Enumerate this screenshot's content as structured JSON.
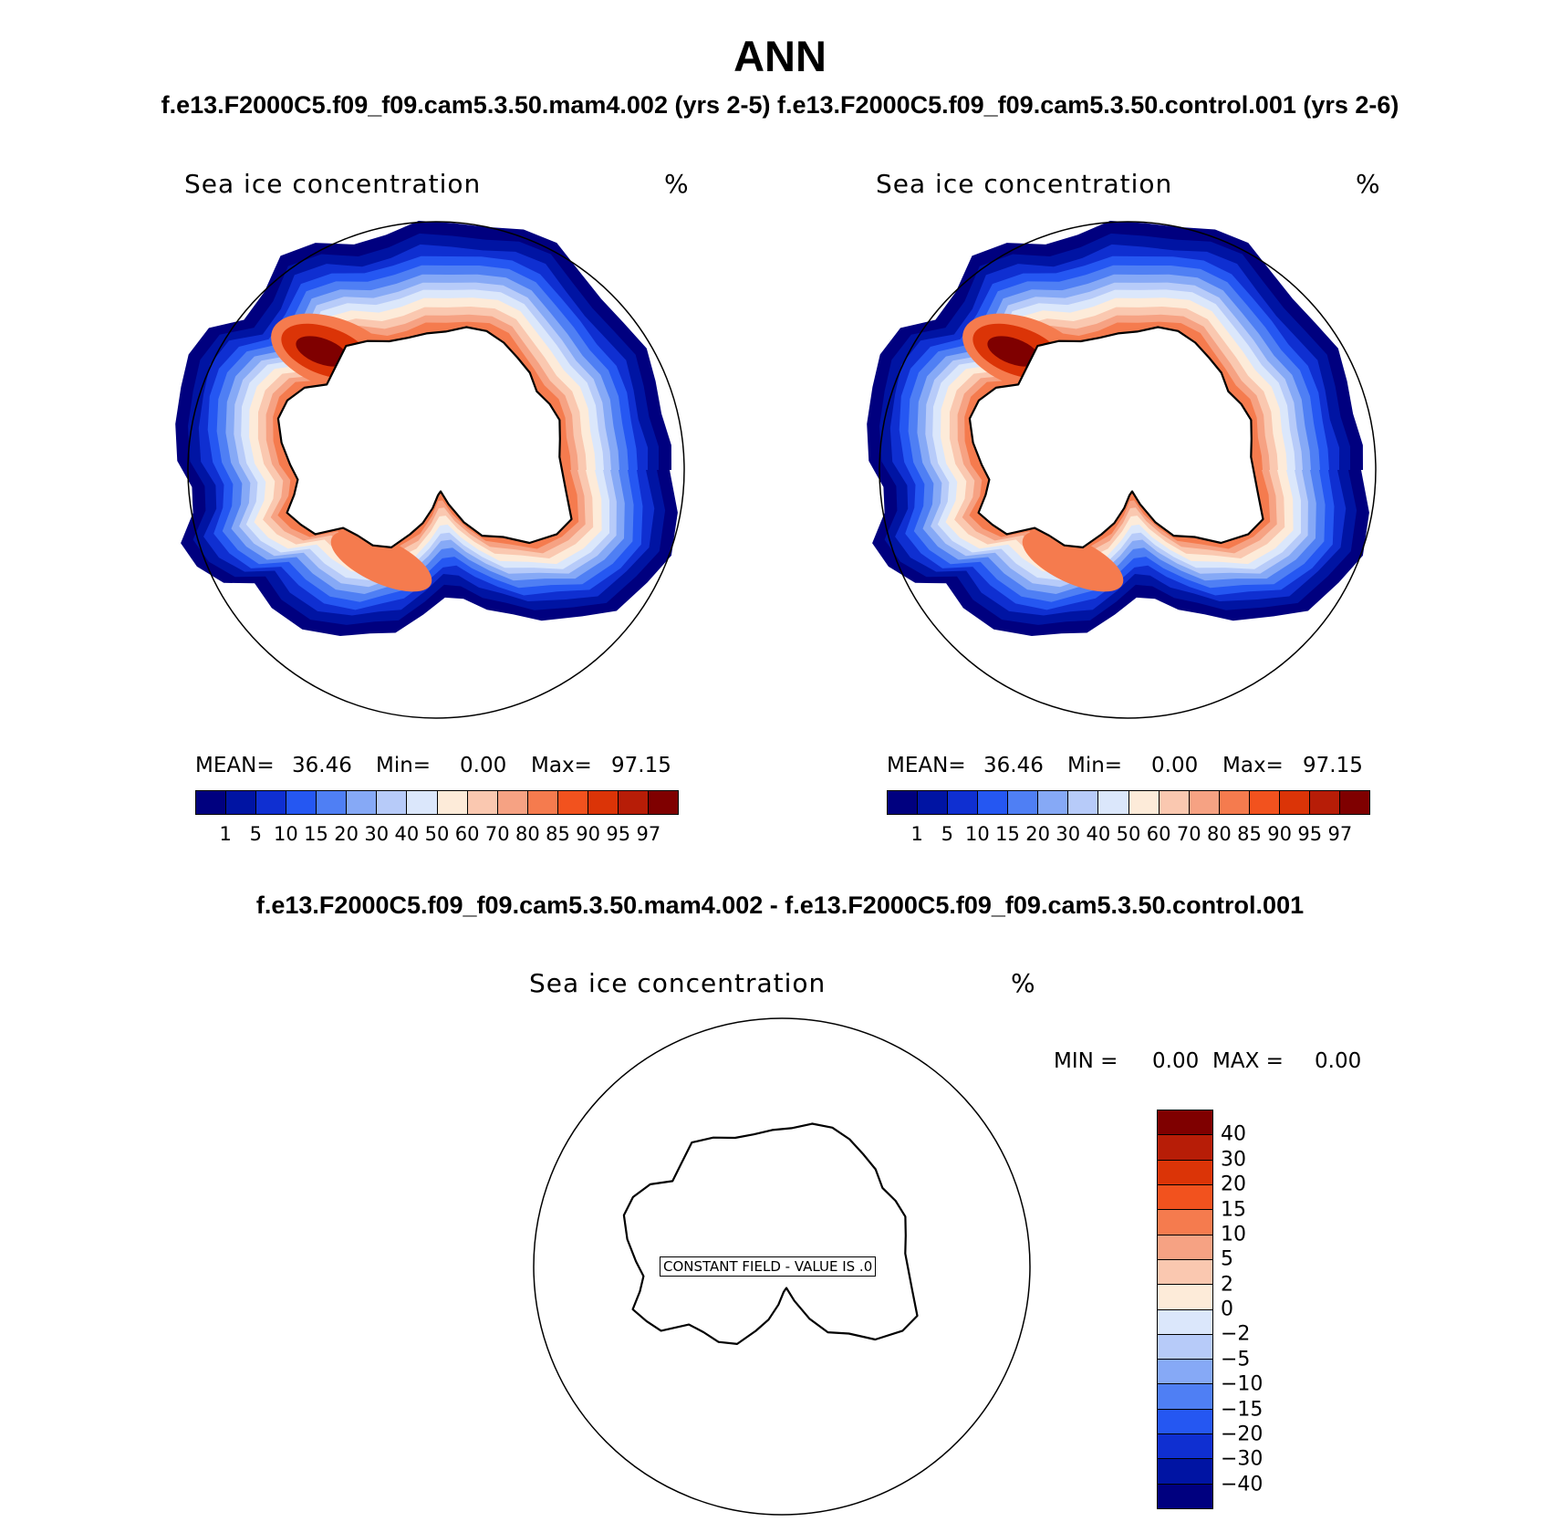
{
  "figure": {
    "season": "ANN",
    "top_title": "f.e13.F2000C5.f09_f09.cam5.3.50.mam4.002 (yrs 2-5) f.e13.F2000C5.f09_f09.cam5.3.50.control.001 (yrs 2-6)",
    "diff_title": "f.e13.F2000C5.f09_f09.cam5.3.50.mam4.002 - f.e13.F2000C5.f09_f09.cam5.3.50.control.001"
  },
  "colors": {
    "abs_scale": [
      "#00007f",
      "#0014a3",
      "#0f2fd1",
      "#2557f2",
      "#4f7ff4",
      "#86a9f6",
      "#b7cbf9",
      "#dbe7fb",
      "#fdebd9",
      "#fac8b0",
      "#f6a283",
      "#f57b4e",
      "#f2521e",
      "#db3407",
      "#b71d07",
      "#7f0000"
    ],
    "diff_scale": [
      "#00007f",
      "#0014a3",
      "#0f2fd1",
      "#2557f2",
      "#4f7ff4",
      "#86a9f6",
      "#b7cbf9",
      "#dbe7fb",
      "#fdebd9",
      "#fac8b0",
      "#f6a283",
      "#f57b4e",
      "#f2521e",
      "#db3407",
      "#b71d07",
      "#7f0000"
    ],
    "coastline": "#000000",
    "frame": "#000000"
  },
  "panels": [
    {
      "id": "mam4",
      "variable": "Sea ice concentration",
      "units": "%",
      "mean_label": "MEAN=",
      "mean": "36.46",
      "min_label": "Min=",
      "min": "0.00",
      "max_label": "Max=",
      "max": "97.15",
      "contour_levels": [
        "1",
        "5",
        "10",
        "15",
        "20",
        "30",
        "40",
        "50",
        "60",
        "70",
        "80",
        "85",
        "90",
        "95",
        "97"
      ]
    },
    {
      "id": "control",
      "variable": "Sea ice concentration",
      "units": "%",
      "mean_label": "MEAN=",
      "mean": "36.46",
      "min_label": "Min=",
      "min": "0.00",
      "max_label": "Max=",
      "max": "97.15",
      "contour_levels": [
        "1",
        "5",
        "10",
        "15",
        "20",
        "30",
        "40",
        "50",
        "60",
        "70",
        "80",
        "85",
        "90",
        "95",
        "97"
      ]
    },
    {
      "id": "difference",
      "variable": "Sea ice concentration",
      "units": "%",
      "min_label": "MIN =",
      "min": "0.00",
      "max_label": "MAX =",
      "max": "0.00",
      "constant_field_text": "CONSTANT FIELD - VALUE IS .0",
      "contour_levels": [
        "40",
        "30",
        "20",
        "15",
        "10",
        "5",
        "2",
        "0",
        "−2",
        "−5",
        "−10",
        "−15",
        "−20",
        "−30",
        "−40"
      ]
    }
  ]
}
